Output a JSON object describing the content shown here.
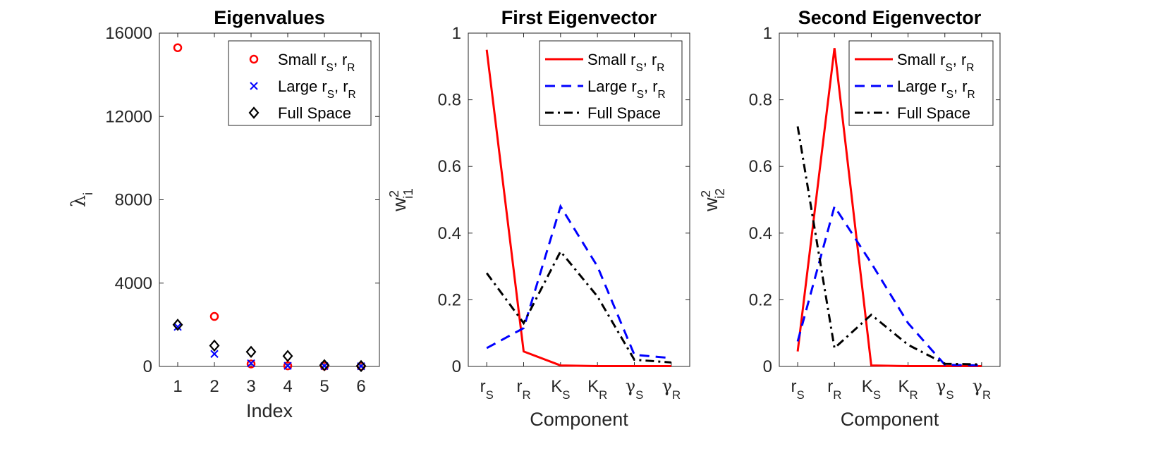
{
  "chart_data": [
    {
      "type": "scatter",
      "title": "Eigenvalues",
      "xlabel": "Index",
      "ylabel": {
        "base": "λ",
        "sub": "i"
      },
      "xlim": [
        0.5,
        6.5
      ],
      "ylim": [
        0,
        16000
      ],
      "xticks": [
        1,
        2,
        3,
        4,
        5,
        6
      ],
      "yticks": [
        0,
        4000,
        8000,
        12000,
        16000
      ],
      "legend_position": "top-right",
      "series": [
        {
          "name": "Small r_S, r_R",
          "label_parts": [
            "Small r",
            "S",
            ", r",
            "R"
          ],
          "marker": "circle",
          "color": "#ff0000",
          "x": [
            1,
            2,
            3,
            4,
            5,
            6
          ],
          "values": [
            15300,
            2400,
            120,
            30,
            20,
            10
          ]
        },
        {
          "name": "Large r_S, r_R",
          "label_parts": [
            "Large r",
            "S",
            ", r",
            "R"
          ],
          "marker": "x",
          "color": "#0000ff",
          "x": [
            1,
            2,
            3,
            4,
            5,
            6
          ],
          "values": [
            1900,
            600,
            150,
            30,
            20,
            10
          ]
        },
        {
          "name": "Full Space",
          "label_parts": [
            "Full Space"
          ],
          "marker": "diamond",
          "color": "#000000",
          "x": [
            1,
            2,
            3,
            4,
            5,
            6
          ],
          "values": [
            2000,
            1000,
            700,
            500,
            60,
            20
          ]
        }
      ]
    },
    {
      "type": "line",
      "title": "First Eigenvector",
      "xlabel": "Component",
      "ylabel": {
        "base": "w",
        "sup": "2",
        "sub": "i1"
      },
      "categories": [
        {
          "base": "r",
          "sub": "S"
        },
        {
          "base": "r",
          "sub": "R"
        },
        {
          "base": "K",
          "sub": "S"
        },
        {
          "base": "K",
          "sub": "R"
        },
        {
          "base": "γ",
          "sub": "S"
        },
        {
          "base": "γ",
          "sub": "R"
        }
      ],
      "ylim": [
        0,
        1
      ],
      "yticks": [
        0,
        0.2,
        0.4,
        0.6,
        0.8,
        1
      ],
      "legend_position": "top-right",
      "series": [
        {
          "name": "Small r_S, r_R",
          "label_parts": [
            "Small r",
            "S",
            ", r",
            "R"
          ],
          "style": "solid",
          "color": "#ff0000",
          "values": [
            0.95,
            0.045,
            0.003,
            0.001,
            0.001,
            0.001
          ]
        },
        {
          "name": "Large r_S, r_R",
          "label_parts": [
            "Large r",
            "S",
            ", r",
            "R"
          ],
          "style": "dashed",
          "color": "#0000ff",
          "values": [
            0.055,
            0.115,
            0.48,
            0.3,
            0.035,
            0.025
          ]
        },
        {
          "name": "Full Space",
          "label_parts": [
            "Full Space"
          ],
          "style": "dashdot",
          "color": "#000000",
          "values": [
            0.28,
            0.13,
            0.345,
            0.21,
            0.02,
            0.012
          ]
        }
      ]
    },
    {
      "type": "line",
      "title": "Second Eigenvector",
      "xlabel": "Component",
      "ylabel": {
        "base": "w",
        "sup": "2",
        "sub": "i2"
      },
      "categories": [
        {
          "base": "r",
          "sub": "S"
        },
        {
          "base": "r",
          "sub": "R"
        },
        {
          "base": "K",
          "sub": "S"
        },
        {
          "base": "K",
          "sub": "R"
        },
        {
          "base": "γ",
          "sub": "S"
        },
        {
          "base": "γ",
          "sub": "R"
        }
      ],
      "ylim": [
        0,
        1
      ],
      "yticks": [
        0,
        0.2,
        0.4,
        0.6,
        0.8,
        1
      ],
      "legend_position": "top-right",
      "series": [
        {
          "name": "Small r_S, r_R",
          "label_parts": [
            "Small r",
            "S",
            ", r",
            "R"
          ],
          "style": "solid",
          "color": "#ff0000",
          "values": [
            0.045,
            0.955,
            0.003,
            0.001,
            0.001,
            0.001
          ]
        },
        {
          "name": "Large r_S, r_R",
          "label_parts": [
            "Large r",
            "S",
            ", r",
            "R"
          ],
          "style": "dashed",
          "color": "#0000ff",
          "values": [
            0.075,
            0.48,
            0.31,
            0.13,
            0.005,
            0.003
          ]
        },
        {
          "name": "Full Space",
          "label_parts": [
            "Full Space"
          ],
          "style": "dashdot",
          "color": "#000000",
          "values": [
            0.72,
            0.055,
            0.155,
            0.065,
            0.008,
            0.006
          ]
        }
      ]
    }
  ]
}
